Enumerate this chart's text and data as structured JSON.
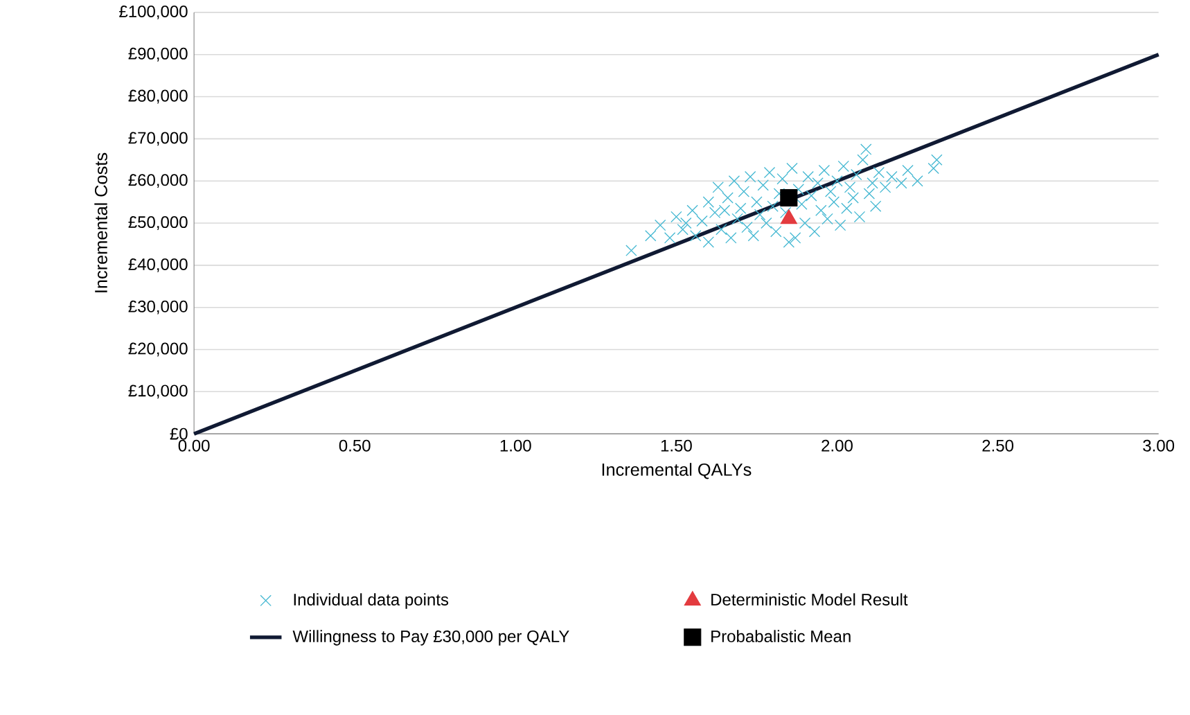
{
  "chart_data": {
    "type": "scatter",
    "xlabel": "Incremental QALYs",
    "ylabel": "Incremental Costs",
    "xlim": [
      0,
      3
    ],
    "ylim": [
      0,
      100000
    ],
    "xticks": [
      {
        "value": 0,
        "label": "0.00"
      },
      {
        "value": 0.5,
        "label": "0.50"
      },
      {
        "value": 1,
        "label": "1.00"
      },
      {
        "value": 1.5,
        "label": "1.50"
      },
      {
        "value": 2,
        "label": "2.00"
      },
      {
        "value": 2.5,
        "label": "2.50"
      },
      {
        "value": 3,
        "label": "3.00"
      }
    ],
    "yticks": [
      {
        "value": 0,
        "label": "£0"
      },
      {
        "value": 10000,
        "label": "£10,000"
      },
      {
        "value": 20000,
        "label": "£20,000"
      },
      {
        "value": 30000,
        "label": "£30,000"
      },
      {
        "value": 40000,
        "label": "£40,000"
      },
      {
        "value": 50000,
        "label": "£50,000"
      },
      {
        "value": 60000,
        "label": "£60,000"
      },
      {
        "value": 70000,
        "label": "£70,000"
      },
      {
        "value": 80000,
        "label": "£80,000"
      },
      {
        "value": 90000,
        "label": "£90,000"
      },
      {
        "value": 100000,
        "label": "£100,000"
      }
    ],
    "grid": "y",
    "legend": "bottom",
    "series": [
      {
        "name": "Individual data points",
        "marker": "cross",
        "color": "#45b8d2",
        "x": [
          1.36,
          1.42,
          1.45,
          1.48,
          1.5,
          1.52,
          1.53,
          1.55,
          1.56,
          1.58,
          1.6,
          1.6,
          1.62,
          1.63,
          1.64,
          1.65,
          1.66,
          1.67,
          1.68,
          1.69,
          1.7,
          1.71,
          1.72,
          1.73,
          1.74,
          1.75,
          1.76,
          1.77,
          1.78,
          1.79,
          1.8,
          1.81,
          1.82,
          1.83,
          1.84,
          1.85,
          1.86,
          1.87,
          1.88,
          1.89,
          1.9,
          1.91,
          1.92,
          1.93,
          1.94,
          1.95,
          1.96,
          1.97,
          1.98,
          1.99,
          2.0,
          2.01,
          2.02,
          2.03,
          2.04,
          2.05,
          2.06,
          2.07,
          2.08,
          2.09,
          2.1,
          2.11,
          2.12,
          2.13,
          2.15,
          2.17,
          2.2,
          2.22,
          2.25,
          2.3,
          2.31
        ],
        "values": [
          43500,
          47000,
          49500,
          46500,
          51500,
          48500,
          50000,
          53000,
          47000,
          50500,
          55000,
          45500,
          52500,
          58500,
          48500,
          53000,
          56000,
          46500,
          60000,
          51000,
          53500,
          57500,
          49000,
          61000,
          47000,
          55000,
          52000,
          59000,
          50000,
          62000,
          54000,
          48000,
          57000,
          60500,
          52500,
          45500,
          63000,
          46500,
          58000,
          54500,
          50000,
          61000,
          56500,
          48000,
          59500,
          53000,
          62500,
          51000,
          57500,
          55000,
          60000,
          49500,
          63500,
          53500,
          58500,
          56000,
          61500,
          51500,
          65000,
          67500,
          57000,
          59500,
          54000,
          62000,
          58500,
          61000,
          59500,
          62500,
          60000,
          63000,
          65000
        ]
      },
      {
        "name": "Deterministic Model Result",
        "marker": "triangle",
        "color": "#e33b3f",
        "x": [
          1.85
        ],
        "values": [
          51000
        ]
      },
      {
        "name": "Willingness to Pay £30,000 per QALY",
        "type": "line",
        "marker": "none",
        "line_style": "solid",
        "color": "#101a33",
        "x": [
          0,
          3
        ],
        "values": [
          0,
          90000
        ]
      },
      {
        "name": "Probabalistic Mean",
        "marker": "square",
        "color": "#000000",
        "x": [
          1.85
        ],
        "values": [
          56000
        ]
      }
    ]
  }
}
